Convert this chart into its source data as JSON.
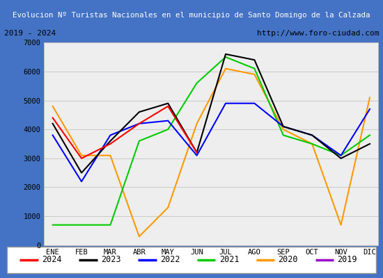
{
  "title": "Evolucion Nº Turistas Nacionales en el municipio de Santo Domingo de la Calzada",
  "subtitle_left": "2019 - 2024",
  "subtitle_right": "http://www.foro-ciudad.com",
  "months": [
    "ENE",
    "FEB",
    "MAR",
    "ABR",
    "MAY",
    "JUN",
    "JUL",
    "AGO",
    "SEP",
    "OCT",
    "NOV",
    "DIC"
  ],
  "series": {
    "2024": {
      "color": "#ff0000",
      "data": [
        4400,
        3000,
        3500,
        4200,
        4800,
        3200,
        null,
        null,
        null,
        null,
        null,
        null
      ]
    },
    "2023": {
      "color": "#000000",
      "data": [
        4200,
        2500,
        3600,
        4600,
        4900,
        3200,
        6600,
        6400,
        4100,
        3800,
        3000,
        3500
      ]
    },
    "2022": {
      "color": "#0000ff",
      "data": [
        3800,
        2200,
        3800,
        4200,
        4300,
        3100,
        4900,
        4900,
        4100,
        3800,
        3100,
        4700
      ]
    },
    "2021": {
      "color": "#00cc00",
      "data": [
        700,
        700,
        700,
        3600,
        4000,
        5600,
        6500,
        6100,
        3800,
        3500,
        3100,
        3800
      ]
    },
    "2020": {
      "color": "#ff9900",
      "data": [
        4800,
        3100,
        3100,
        300,
        1300,
        4200,
        6100,
        5900,
        4000,
        3500,
        700,
        5100
      ]
    },
    "2019": {
      "color": "#9900cc",
      "data": [
        null,
        null,
        null,
        null,
        null,
        null,
        null,
        null,
        null,
        null,
        null,
        5100
      ]
    }
  },
  "ylim": [
    0,
    7000
  ],
  "yticks": [
    0,
    1000,
    2000,
    3000,
    4000,
    5000,
    6000,
    7000
  ],
  "title_bg_color": "#4472c4",
  "title_text_color": "#ffffff",
  "plot_bg_color": "#eeeeee",
  "border_color": "#4472c4",
  "legend_order": [
    "2024",
    "2023",
    "2022",
    "2021",
    "2020",
    "2019"
  ]
}
